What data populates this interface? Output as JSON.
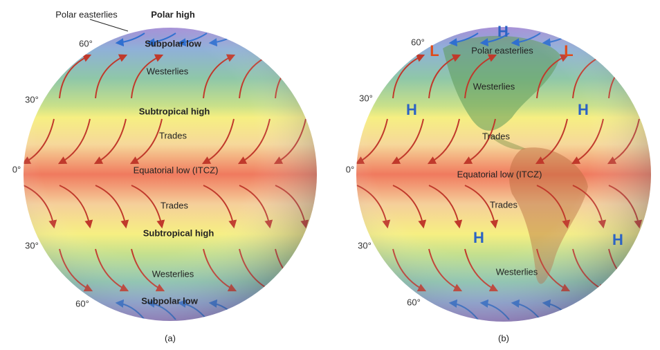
{
  "figure_a": {
    "labels": [
      "Polar easterlies",
      "Polar high",
      "Subpolar low",
      "Westerlies",
      "Subtropical high",
      "Trades",
      "Equatorial low (ITCZ)",
      "Trades",
      "Subtropical high",
      "Westerlies",
      "Subpolar low"
    ],
    "latitudes": [
      "60°",
      "30°",
      "0°",
      "30°",
      "60°"
    ],
    "caption": "(a)"
  },
  "figure_b": {
    "labels": [
      "Polar easterlies",
      "Westerlies",
      "Trades",
      "Equatorial low (ITCZ)",
      "Trades",
      "Westerlies"
    ],
    "pressure_centers": [
      "H",
      "L",
      "L",
      "H",
      "H",
      "H",
      "H"
    ],
    "latitudes": [
      "60°",
      "30°",
      "0°",
      "30°",
      "60°"
    ],
    "caption": "(b)"
  }
}
